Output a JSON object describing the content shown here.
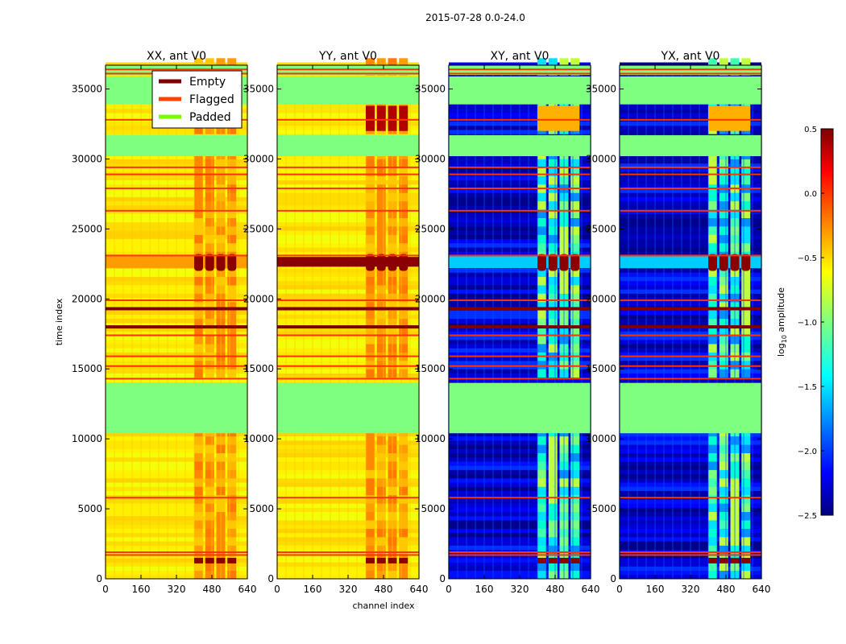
{
  "chart_data": {
    "type": "heatmap",
    "suptitle": "2015-07-28 0.0-24.0",
    "xlabel": "channel index",
    "ylabel": "time index",
    "xlim": [
      0,
      640
    ],
    "ylim": [
      0,
      36700
    ],
    "xticks": [
      "0",
      "160",
      "320",
      "480",
      "640"
    ],
    "yticks": [
      "0",
      "5000",
      "10000",
      "15000",
      "20000",
      "25000",
      "30000",
      "35000"
    ],
    "panels": [
      {
        "title": "XX, ant V0",
        "style": "high"
      },
      {
        "title": "YY, ant V0",
        "style": "high"
      },
      {
        "title": "XY, ant V0",
        "style": "low"
      },
      {
        "title": "YX, ant V0",
        "style": "low"
      }
    ],
    "padded_time_ranges": [
      [
        10400,
        14000
      ],
      [
        30200,
        31700
      ],
      [
        33900,
        35900
      ]
    ],
    "flagged_time_rows": [
      1700,
      1900,
      5800,
      14300,
      15200,
      15900,
      17400,
      19900,
      23100,
      26300,
      27900,
      28900,
      29400,
      32800,
      36100,
      36400
    ],
    "empty_time_rows": [
      18000,
      19300
    ],
    "band_channels": [
      [
        400,
        440
      ],
      [
        450,
        490
      ],
      [
        500,
        540
      ],
      [
        550,
        590
      ]
    ],
    "legend": {
      "position": "top-right",
      "entries": [
        {
          "label": "Empty",
          "color": "#7f0000"
        },
        {
          "label": "Flagged",
          "color": "#ff4400"
        },
        {
          "label": "Padded",
          "color": "#77ff00"
        }
      ]
    },
    "colorbar": {
      "label_main": "log",
      "label_sub": "10",
      "label_rest": " amplitude",
      "range": [
        -2.5,
        0.5
      ],
      "ticks": [
        "0.5",
        "0.0",
        "−0.5",
        "−1.0",
        "−1.5",
        "−2.0",
        "−2.5"
      ]
    }
  }
}
